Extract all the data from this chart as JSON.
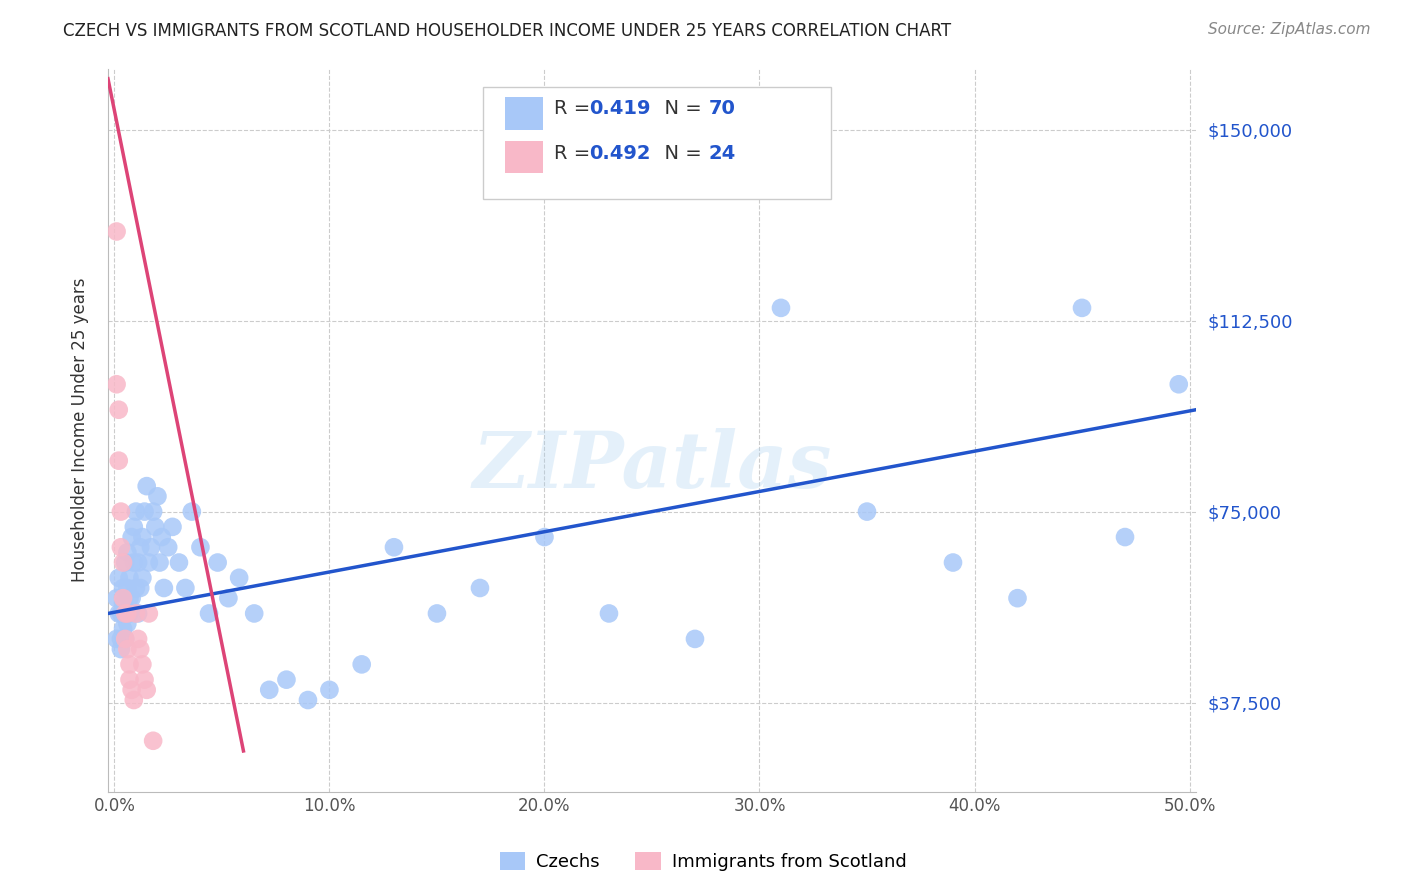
{
  "title": "CZECH VS IMMIGRANTS FROM SCOTLAND HOUSEHOLDER INCOME UNDER 25 YEARS CORRELATION CHART",
  "source": "Source: ZipAtlas.com",
  "ylabel": "Householder Income Under 25 years",
  "xlabel_ticks": [
    "0.0%",
    "10.0%",
    "20.0%",
    "30.0%",
    "40.0%",
    "50.0%"
  ],
  "ytick_labels": [
    "$37,500",
    "$75,000",
    "$112,500",
    "$150,000"
  ],
  "ytick_values": [
    37500,
    75000,
    112500,
    150000
  ],
  "xlim": [
    -0.003,
    0.503
  ],
  "ylim": [
    20000,
    162000
  ],
  "czech_R": "0.419",
  "czech_N": "70",
  "scotland_R": "0.492",
  "scotland_N": "24",
  "czech_color": "#a8c8f8",
  "czech_line_color": "#2255cc",
  "scotland_color": "#f8b8c8",
  "scotland_line_color": "#dd4477",
  "watermark": "ZIPatlas",
  "legend_label_czech": "Czechs",
  "legend_label_scotland": "Immigrants from Scotland",
  "czech_x": [
    0.001,
    0.001,
    0.002,
    0.002,
    0.003,
    0.003,
    0.003,
    0.004,
    0.004,
    0.004,
    0.005,
    0.005,
    0.005,
    0.006,
    0.006,
    0.006,
    0.007,
    0.007,
    0.007,
    0.008,
    0.008,
    0.009,
    0.009,
    0.01,
    0.01,
    0.011,
    0.011,
    0.012,
    0.012,
    0.013,
    0.013,
    0.014,
    0.015,
    0.016,
    0.017,
    0.018,
    0.019,
    0.02,
    0.021,
    0.022,
    0.023,
    0.025,
    0.027,
    0.03,
    0.033,
    0.036,
    0.04,
    0.044,
    0.048,
    0.053,
    0.058,
    0.065,
    0.072,
    0.08,
    0.09,
    0.1,
    0.115,
    0.13,
    0.15,
    0.17,
    0.2,
    0.23,
    0.27,
    0.31,
    0.35,
    0.39,
    0.42,
    0.45,
    0.47,
    0.495
  ],
  "czech_y": [
    58000,
    50000,
    55000,
    62000,
    50000,
    55000,
    48000,
    60000,
    52000,
    57000,
    65000,
    55000,
    50000,
    60000,
    67000,
    53000,
    58000,
    62000,
    55000,
    70000,
    58000,
    65000,
    72000,
    60000,
    75000,
    65000,
    55000,
    68000,
    60000,
    70000,
    62000,
    75000,
    80000,
    65000,
    68000,
    75000,
    72000,
    78000,
    65000,
    70000,
    60000,
    68000,
    72000,
    65000,
    60000,
    75000,
    68000,
    55000,
    65000,
    58000,
    62000,
    55000,
    40000,
    42000,
    38000,
    40000,
    45000,
    68000,
    55000,
    60000,
    70000,
    55000,
    50000,
    115000,
    75000,
    65000,
    58000,
    115000,
    70000,
    100000
  ],
  "scotland_x": [
    0.001,
    0.001,
    0.002,
    0.002,
    0.003,
    0.003,
    0.004,
    0.004,
    0.005,
    0.005,
    0.006,
    0.006,
    0.007,
    0.007,
    0.008,
    0.009,
    0.01,
    0.011,
    0.012,
    0.013,
    0.014,
    0.015,
    0.016,
    0.018
  ],
  "scotland_y": [
    130000,
    100000,
    95000,
    85000,
    75000,
    68000,
    65000,
    58000,
    55000,
    50000,
    48000,
    55000,
    45000,
    42000,
    40000,
    38000,
    55000,
    50000,
    48000,
    45000,
    42000,
    40000,
    55000,
    30000
  ],
  "czech_trend_x": [
    -0.003,
    0.503
  ],
  "czech_trend_y": [
    55000,
    95000
  ],
  "scotland_trend_x": [
    -0.003,
    0.06
  ],
  "scotland_trend_y": [
    160000,
    28000
  ]
}
